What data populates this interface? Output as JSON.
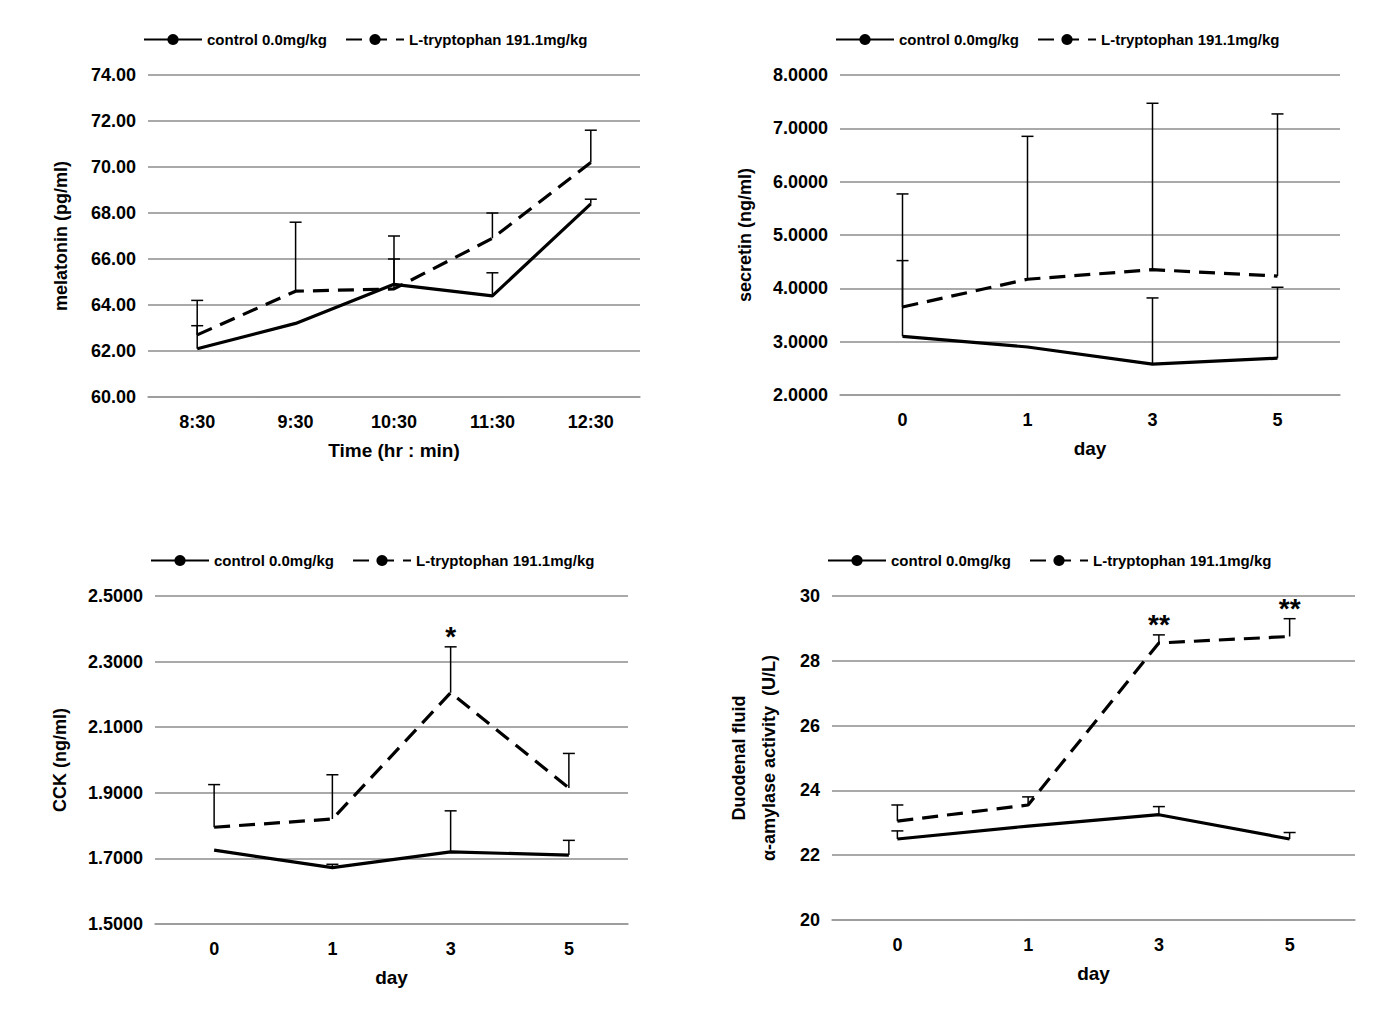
{
  "chart_data": [
    {
      "type": "line",
      "x_label": "Time (hr : min)",
      "y_label": "melatonin (pg/ml)",
      "categories": [
        "8:30",
        "9:30",
        "10:30",
        "11:30",
        "12:30"
      ],
      "series": [
        {
          "name": "control 0.0mg/kg",
          "color": "#000000",
          "line_style": "solid",
          "values": [
            62.1,
            63.2,
            64.9,
            64.4,
            68.4
          ],
          "errors": [
            1.0,
            null,
            1.1,
            1.0,
            0.2
          ]
        },
        {
          "name": "L-tryptophan 191.1mg/kg",
          "color": "#000000",
          "line_style": "dashed",
          "values": [
            62.7,
            64.6,
            64.7,
            66.9,
            70.2
          ],
          "errors": [
            1.5,
            3.0,
            2.3,
            1.1,
            1.4
          ]
        }
      ],
      "ylim": [
        60,
        74
      ],
      "yticks": [
        {
          "value": 60,
          "label": "60.00"
        },
        {
          "value": 62,
          "label": "62.00"
        },
        {
          "value": 64,
          "label": "64.00"
        },
        {
          "value": 66,
          "label": "66.00"
        },
        {
          "value": 68,
          "label": "68.00"
        },
        {
          "value": 70,
          "label": "70.00"
        },
        {
          "value": 72,
          "label": "72.00"
        },
        {
          "value": 74,
          "label": "74.00"
        }
      ],
      "grid": true,
      "legend": "top",
      "annotations": []
    },
    {
      "type": "line",
      "x_label": "day",
      "y_label": "secretin (ng/ml)",
      "categories": [
        "0",
        "1",
        "3",
        "5"
      ],
      "series": [
        {
          "name": "control 0.0mg/kg",
          "color": "#000000",
          "line_style": "solid",
          "values": [
            3.1,
            2.9,
            2.58,
            2.69
          ],
          "errors": [
            1.42,
            null,
            1.24,
            1.33
          ]
        },
        {
          "name": "L-tryptophan 191.1mg/kg",
          "color": "#000000",
          "line_style": "dashed",
          "values": [
            3.65,
            4.17,
            4.35,
            4.23
          ],
          "errors": [
            2.12,
            2.68,
            3.12,
            3.04
          ]
        }
      ],
      "ylim": [
        2,
        8
      ],
      "yticks": [
        {
          "value": 2,
          "label": "2.0000"
        },
        {
          "value": 3,
          "label": "3.0000"
        },
        {
          "value": 4,
          "label": "4.0000"
        },
        {
          "value": 5,
          "label": "5.0000"
        },
        {
          "value": 6,
          "label": "6.0000"
        },
        {
          "value": 7,
          "label": "7.0000"
        },
        {
          "value": 8,
          "label": "8.0000"
        }
      ],
      "grid": true,
      "legend": "top",
      "annotations": []
    },
    {
      "type": "line",
      "x_label": "day",
      "y_label": "CCK (ng/ml)",
      "categories": [
        "0",
        "1",
        "3",
        "5"
      ],
      "series": [
        {
          "name": "control 0.0mg/kg",
          "color": "#000000",
          "line_style": "solid",
          "values": [
            1.725,
            1.672,
            1.72,
            1.71
          ],
          "errors": [
            null,
            0.01,
            0.125,
            0.045
          ]
        },
        {
          "name": "L-tryptophan 191.1mg/kg",
          "color": "#000000",
          "line_style": "dashed",
          "values": [
            1.795,
            1.82,
            2.205,
            1.915
          ],
          "errors": [
            0.13,
            0.135,
            0.14,
            0.105
          ]
        }
      ],
      "ylim": [
        1.5,
        2.5
      ],
      "yticks": [
        {
          "value": 1.5,
          "label": "1.5000"
        },
        {
          "value": 1.7,
          "label": "1.7000"
        },
        {
          "value": 1.9,
          "label": "1.9000"
        },
        {
          "value": 2.1,
          "label": "2.1000"
        },
        {
          "value": 2.3,
          "label": "2.3000"
        },
        {
          "value": 2.5,
          "label": "2.5000"
        }
      ],
      "grid": true,
      "legend": "top",
      "annotations": [
        {
          "text": "*",
          "category": "3",
          "series": "L-tryptophan 191.1mg/kg"
        }
      ]
    },
    {
      "type": "line",
      "x_label": "day",
      "y_label": "Duodenal fluid\nα-amylase activity  (U/L)",
      "categories": [
        "0",
        "1",
        "3",
        "5"
      ],
      "series": [
        {
          "name": "control 0.0mg/kg",
          "color": "#000000",
          "line_style": "solid",
          "values": [
            22.5,
            22.9,
            23.25,
            22.5
          ],
          "errors": [
            0.25,
            null,
            0.25,
            0.2
          ]
        },
        {
          "name": "L-tryptophan 191.1mg/kg",
          "color": "#000000",
          "line_style": "dashed",
          "values": [
            23.05,
            23.55,
            28.55,
            28.75
          ],
          "errors": [
            0.5,
            0.25,
            0.25,
            0.55
          ]
        }
      ],
      "ylim": [
        20,
        30
      ],
      "yticks": [
        20,
        22,
        24,
        26,
        28,
        30
      ],
      "grid": true,
      "legend": "top",
      "annotations": [
        {
          "text": "**",
          "category": "3",
          "series": "L-tryptophan 191.1mg/kg"
        },
        {
          "text": "**",
          "category": "5",
          "series": "L-tryptophan 191.1mg/kg"
        }
      ]
    }
  ]
}
